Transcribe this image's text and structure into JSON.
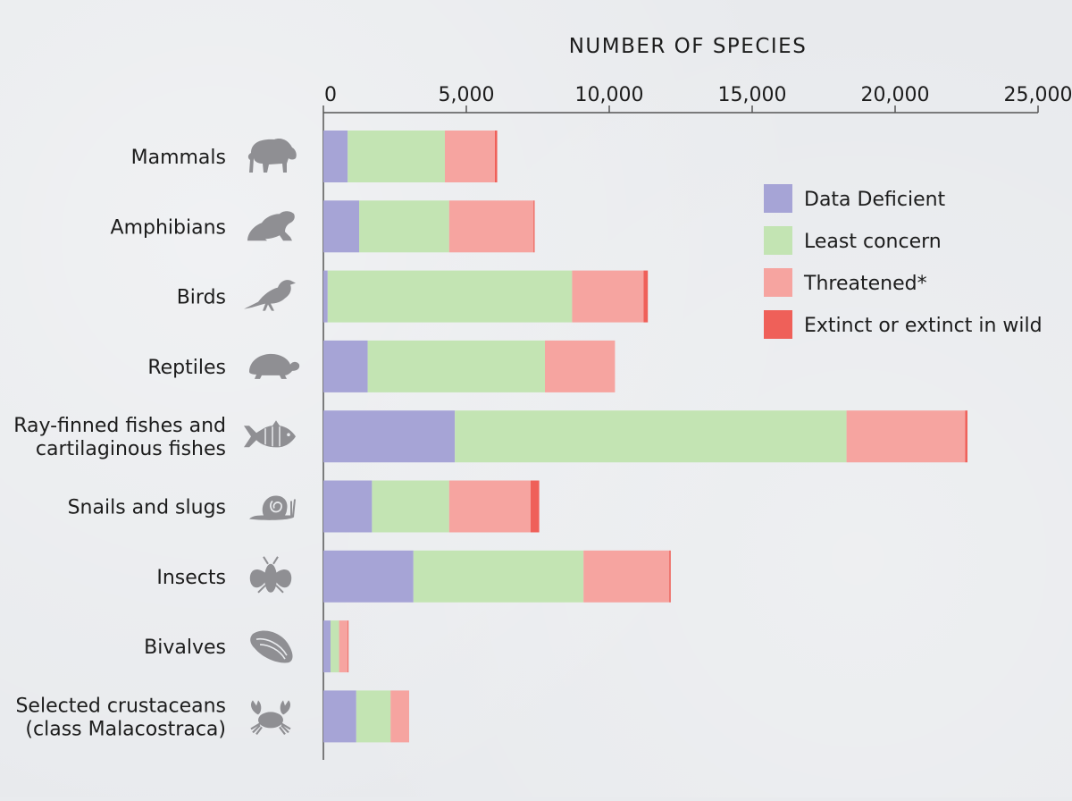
{
  "chart_data": {
    "type": "bar",
    "orientation": "horizontal",
    "stacked": true,
    "title": "NUMBER OF SPECIES",
    "xlim": [
      0,
      25000
    ],
    "ticks": [
      {
        "value": 0,
        "label": "0"
      },
      {
        "value": 5000,
        "label": "5,000"
      },
      {
        "value": 10000,
        "label": "10,000"
      },
      {
        "value": 15000,
        "label": "15,000"
      },
      {
        "value": 20000,
        "label": "20,000"
      },
      {
        "value": 25000,
        "label": "25,000"
      }
    ],
    "categories": [
      {
        "label": [
          "Mammals"
        ],
        "icon": "bison-icon"
      },
      {
        "label": [
          "Amphibians"
        ],
        "icon": "frog-icon"
      },
      {
        "label": [
          "Birds"
        ],
        "icon": "bird-icon"
      },
      {
        "label": [
          "Reptiles"
        ],
        "icon": "turtle-icon"
      },
      {
        "label": [
          "Ray-finned fishes and",
          "cartilaginous fishes"
        ],
        "icon": "fish-icon"
      },
      {
        "label": [
          "Snails and slugs"
        ],
        "icon": "snail-icon"
      },
      {
        "label": [
          "Insects"
        ],
        "icon": "insect-icon"
      },
      {
        "label": [
          "Bivalves"
        ],
        "icon": "mussel-icon"
      },
      {
        "label": [
          "Selected crustaceans",
          "(class Malacostraca)"
        ],
        "icon": "crab-icon"
      }
    ],
    "series": [
      {
        "name": "Data Deficient",
        "color": "#a6a4d6",
        "values": [
          850,
          1250,
          150,
          1550,
          4600,
          1700,
          3150,
          250,
          1150
        ]
      },
      {
        "name": "Least concern",
        "color": "#c3e4b3",
        "values": [
          3400,
          3150,
          8550,
          6200,
          13700,
          2700,
          5950,
          300,
          1200
        ]
      },
      {
        "name": "Threatened*",
        "color": "#f6a4a0",
        "values": [
          1750,
          2950,
          2500,
          2450,
          4150,
          2850,
          3000,
          300,
          650
        ]
      },
      {
        "name": "Extinct or extinct in wild",
        "color": "#ef6059",
        "values": [
          80,
          40,
          150,
          0,
          80,
          300,
          50,
          30,
          0
        ]
      }
    ],
    "legend_position": "top-right",
    "grid": false
  }
}
